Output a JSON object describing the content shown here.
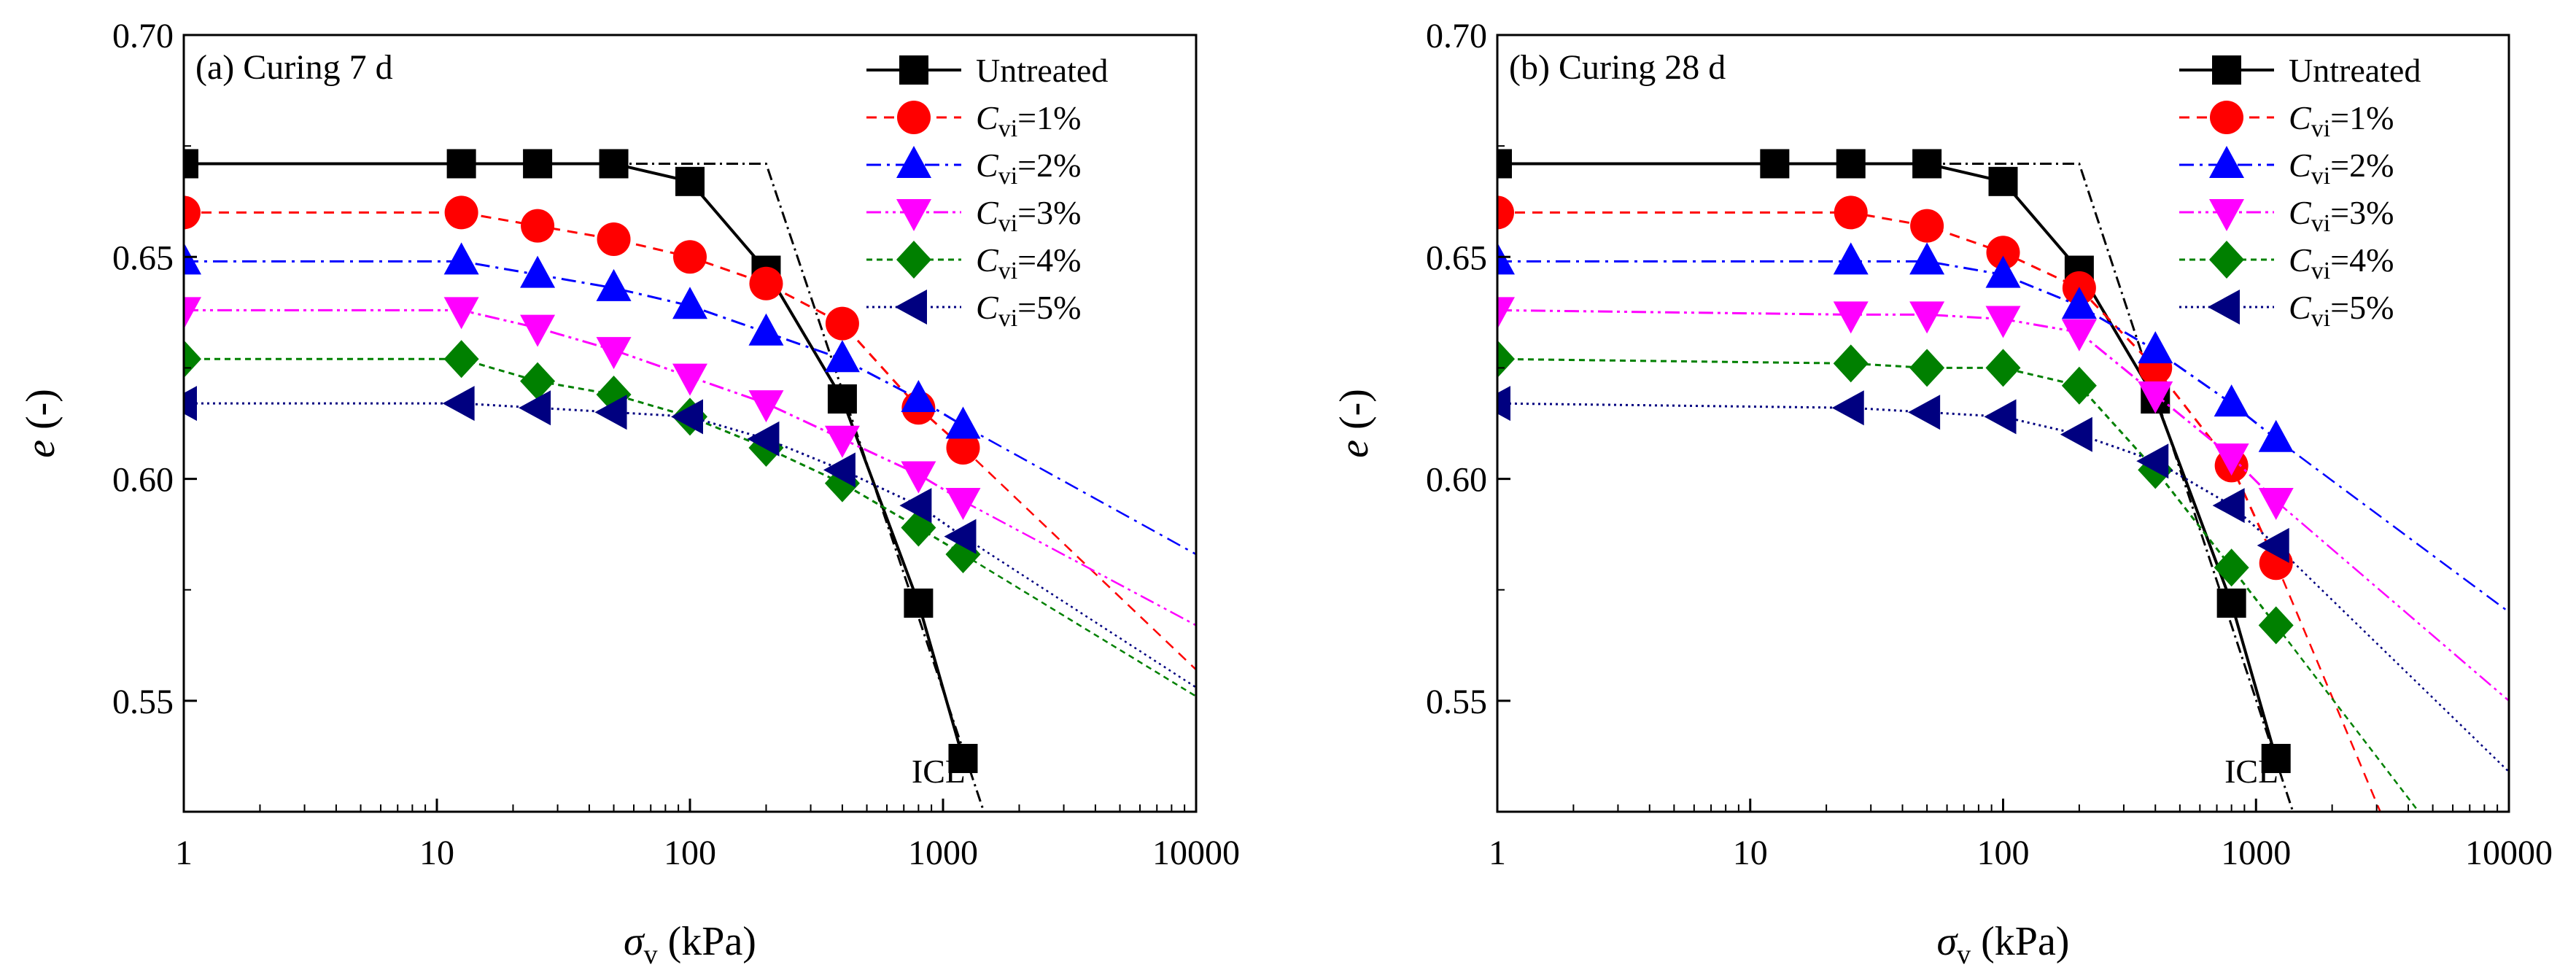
{
  "figure": {
    "colors": {
      "untreated": "#000000",
      "c1": "#ff0000",
      "c2": "#0000ff",
      "c3": "#ff00ff",
      "c4": "#008000",
      "c5": "#000080",
      "icl": "#000000"
    },
    "xlabel_symbol": "σ",
    "xlabel_sub": "v",
    "xlabel_unit": " (kPa)",
    "ylabel_symbol": "e",
    "ylabel_unit": " (-)"
  },
  "chart_data": [
    {
      "type": "line",
      "title": "(a) Curing 7 d",
      "xscale": "log",
      "xlim": [
        1,
        10000
      ],
      "ylim": [
        0.525,
        0.7
      ],
      "x_ticks": [
        1,
        10,
        100,
        1000,
        10000
      ],
      "x_tick_labels": [
        "1",
        "10",
        "100",
        "1000",
        "10000"
      ],
      "y_ticks": [
        0.55,
        0.6,
        0.65,
        0.7
      ],
      "y_tick_labels": [
        "0.55",
        "0.60",
        "0.65",
        "0.70"
      ],
      "legend_position": "top-right",
      "annotation": "ICL",
      "icl_line": {
        "x": [
          1,
          200,
          1450
        ],
        "y": [
          0.671,
          0.671,
          0.525
        ]
      },
      "series": [
        {
          "key": "untreated",
          "name": "Untreated",
          "legend_base": "Untreated",
          "legend_sub": "",
          "legend_tail": "",
          "marker": "square",
          "dash": "",
          "x": [
            1,
            12.5,
            25,
            50,
            100,
            200,
            400,
            800,
            1200
          ],
          "y": [
            0.671,
            0.671,
            0.671,
            0.671,
            0.667,
            0.647,
            0.618,
            0.572,
            0.537
          ],
          "trend": null
        },
        {
          "key": "c1",
          "name": "Cvi=1%",
          "legend_base": "C",
          "legend_sub": "vi",
          "legend_tail": "=1%",
          "marker": "circle",
          "dash": "14,10",
          "x": [
            1,
            12.5,
            25,
            50,
            100,
            200,
            400,
            800,
            1200
          ],
          "y": [
            0.66,
            0.66,
            0.657,
            0.654,
            0.65,
            0.644,
            0.635,
            0.616,
            0.607
          ],
          "trend": [
            10000,
            0.557
          ]
        },
        {
          "key": "c2",
          "name": "Cvi=2%",
          "legend_base": "C",
          "legend_sub": "vi",
          "legend_tail": "=2%",
          "marker": "triangle-up",
          "dash": "20,8,4,8",
          "x": [
            1,
            12.5,
            25,
            50,
            100,
            200,
            400,
            800,
            1200
          ],
          "y": [
            0.649,
            0.649,
            0.646,
            0.643,
            0.639,
            0.633,
            0.627,
            0.618,
            0.612
          ],
          "trend": [
            10000,
            0.583
          ]
        },
        {
          "key": "c3",
          "name": "Cvi=3%",
          "legend_base": "C",
          "legend_sub": "vi",
          "legend_tail": "=3%",
          "marker": "triangle-down",
          "dash": "20,6,4,6,4,6",
          "x": [
            1,
            12.5,
            25,
            50,
            100,
            200,
            400,
            800,
            1200
          ],
          "y": [
            0.638,
            0.638,
            0.634,
            0.629,
            0.623,
            0.617,
            0.609,
            0.601,
            0.595
          ],
          "trend": [
            10000,
            0.567
          ]
        },
        {
          "key": "c4",
          "name": "Cvi=4%",
          "legend_base": "C",
          "legend_sub": "vi",
          "legend_tail": "=4%",
          "marker": "diamond",
          "dash": "8,6",
          "x": [
            1,
            12.5,
            25,
            50,
            100,
            200,
            400,
            800,
            1200
          ],
          "y": [
            0.627,
            0.627,
            0.622,
            0.619,
            0.614,
            0.607,
            0.599,
            0.589,
            0.583
          ],
          "trend": [
            10000,
            0.551
          ]
        },
        {
          "key": "c5",
          "name": "Cvi=5%",
          "legend_base": "C",
          "legend_sub": "vi",
          "legend_tail": "=5%",
          "marker": "triangle-left",
          "dash": "3,5",
          "x": [
            1,
            12.5,
            25,
            50,
            100,
            200,
            400,
            800,
            1200
          ],
          "y": [
            0.617,
            0.617,
            0.616,
            0.615,
            0.614,
            0.609,
            0.602,
            0.594,
            0.587
          ],
          "trend": [
            10000,
            0.553
          ]
        }
      ]
    },
    {
      "type": "line",
      "title": "(b) Curing 28 d",
      "xscale": "log",
      "xlim": [
        1,
        10000
      ],
      "ylim": [
        0.525,
        0.7
      ],
      "x_ticks": [
        1,
        10,
        100,
        1000,
        10000
      ],
      "x_tick_labels": [
        "1",
        "10",
        "100",
        "1000",
        "10000"
      ],
      "y_ticks": [
        0.55,
        0.6,
        0.65,
        0.7
      ],
      "y_tick_labels": [
        "0.55",
        "0.60",
        "0.65",
        "0.70"
      ],
      "legend_position": "top-right",
      "annotation": "ICL",
      "icl_line": {
        "x": [
          1,
          200,
          1400
        ],
        "y": [
          0.671,
          0.671,
          0.525
        ]
      },
      "series": [
        {
          "key": "untreated",
          "name": "Untreated",
          "legend_base": "Untreated",
          "legend_sub": "",
          "legend_tail": "",
          "marker": "square",
          "dash": "",
          "x": [
            1,
            12.5,
            25,
            50,
            100,
            200,
            400,
            800,
            1200
          ],
          "y": [
            0.671,
            0.671,
            0.671,
            0.671,
            0.667,
            0.647,
            0.618,
            0.572,
            0.537
          ],
          "trend": null
        },
        {
          "key": "c1",
          "name": "Cvi=1%",
          "legend_base": "C",
          "legend_sub": "vi",
          "legend_tail": "=1%",
          "marker": "circle",
          "dash": "14,10",
          "x": [
            1,
            25,
            50,
            100,
            200,
            400,
            800,
            1200
          ],
          "y": [
            0.66,
            0.66,
            0.657,
            0.651,
            0.643,
            0.625,
            0.603,
            0.581
          ],
          "trend": [
            3100,
            0.525
          ]
        },
        {
          "key": "c2",
          "name": "Cvi=2%",
          "legend_base": "C",
          "legend_sub": "vi",
          "legend_tail": "=2%",
          "marker": "triangle-up",
          "dash": "20,8,4,8",
          "x": [
            1,
            25,
            50,
            100,
            200,
            400,
            800,
            1200
          ],
          "y": [
            0.649,
            0.649,
            0.649,
            0.646,
            0.639,
            0.629,
            0.617,
            0.609
          ],
          "trend": [
            10000,
            0.57
          ]
        },
        {
          "key": "c3",
          "name": "Cvi=3%",
          "legend_base": "C",
          "legend_sub": "vi",
          "legend_tail": "=3%",
          "marker": "triangle-down",
          "dash": "20,6,4,6,4,6",
          "x": [
            1,
            25,
            50,
            100,
            200,
            400,
            800,
            1200
          ],
          "y": [
            0.638,
            0.637,
            0.637,
            0.636,
            0.633,
            0.619,
            0.605,
            0.595
          ],
          "trend": [
            10000,
            0.55
          ]
        },
        {
          "key": "c4",
          "name": "Cvi=4%",
          "legend_base": "C",
          "legend_sub": "vi",
          "legend_tail": "=4%",
          "marker": "diamond",
          "dash": "8,6",
          "x": [
            1,
            25,
            50,
            100,
            200,
            400,
            800,
            1200
          ],
          "y": [
            0.627,
            0.626,
            0.625,
            0.625,
            0.621,
            0.602,
            0.58,
            0.567
          ],
          "trend": [
            4400,
            0.525
          ]
        },
        {
          "key": "c5",
          "name": "Cvi=5%",
          "legend_base": "C",
          "legend_sub": "vi",
          "legend_tail": "=5%",
          "marker": "triangle-left",
          "dash": "3,5",
          "x": [
            1,
            25,
            50,
            100,
            200,
            400,
            800,
            1200
          ],
          "y": [
            0.617,
            0.616,
            0.615,
            0.614,
            0.61,
            0.604,
            0.594,
            0.585
          ],
          "trend": [
            10000,
            0.534
          ]
        }
      ]
    }
  ]
}
